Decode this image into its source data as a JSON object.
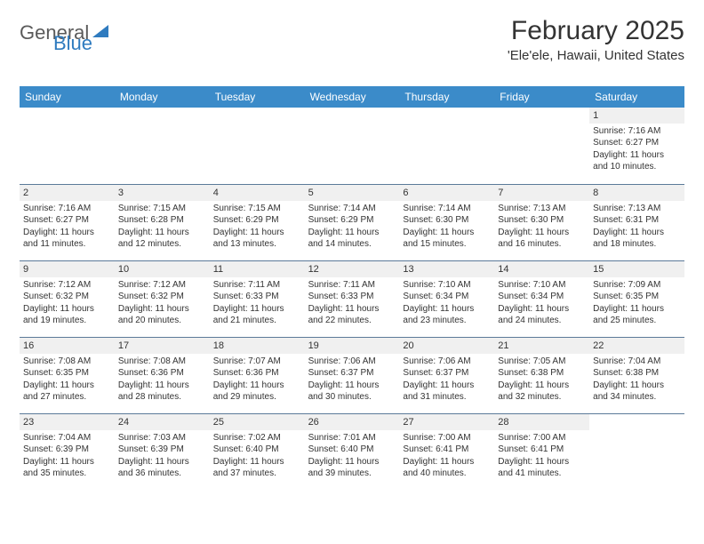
{
  "logo": {
    "text1": "General",
    "text2": "Blue"
  },
  "title": "February 2025",
  "location": "'Ele'ele, Hawaii, United States",
  "header_bg": "#3b8bc9",
  "header_fg": "#ffffff",
  "divider_color": "#5b7a99",
  "daynum_bg": "#f0f0f0",
  "text_color": "#333333",
  "weekdays": [
    "Sunday",
    "Monday",
    "Tuesday",
    "Wednesday",
    "Thursday",
    "Friday",
    "Saturday"
  ],
  "weeks": [
    [
      null,
      null,
      null,
      null,
      null,
      null,
      {
        "n": "1",
        "sr": "Sunrise: 7:16 AM",
        "ss": "Sunset: 6:27 PM",
        "dl": "Daylight: 11 hours and 10 minutes."
      }
    ],
    [
      {
        "n": "2",
        "sr": "Sunrise: 7:16 AM",
        "ss": "Sunset: 6:27 PM",
        "dl": "Daylight: 11 hours and 11 minutes."
      },
      {
        "n": "3",
        "sr": "Sunrise: 7:15 AM",
        "ss": "Sunset: 6:28 PM",
        "dl": "Daylight: 11 hours and 12 minutes."
      },
      {
        "n": "4",
        "sr": "Sunrise: 7:15 AM",
        "ss": "Sunset: 6:29 PM",
        "dl": "Daylight: 11 hours and 13 minutes."
      },
      {
        "n": "5",
        "sr": "Sunrise: 7:14 AM",
        "ss": "Sunset: 6:29 PM",
        "dl": "Daylight: 11 hours and 14 minutes."
      },
      {
        "n": "6",
        "sr": "Sunrise: 7:14 AM",
        "ss": "Sunset: 6:30 PM",
        "dl": "Daylight: 11 hours and 15 minutes."
      },
      {
        "n": "7",
        "sr": "Sunrise: 7:13 AM",
        "ss": "Sunset: 6:30 PM",
        "dl": "Daylight: 11 hours and 16 minutes."
      },
      {
        "n": "8",
        "sr": "Sunrise: 7:13 AM",
        "ss": "Sunset: 6:31 PM",
        "dl": "Daylight: 11 hours and 18 minutes."
      }
    ],
    [
      {
        "n": "9",
        "sr": "Sunrise: 7:12 AM",
        "ss": "Sunset: 6:32 PM",
        "dl": "Daylight: 11 hours and 19 minutes."
      },
      {
        "n": "10",
        "sr": "Sunrise: 7:12 AM",
        "ss": "Sunset: 6:32 PM",
        "dl": "Daylight: 11 hours and 20 minutes."
      },
      {
        "n": "11",
        "sr": "Sunrise: 7:11 AM",
        "ss": "Sunset: 6:33 PM",
        "dl": "Daylight: 11 hours and 21 minutes."
      },
      {
        "n": "12",
        "sr": "Sunrise: 7:11 AM",
        "ss": "Sunset: 6:33 PM",
        "dl": "Daylight: 11 hours and 22 minutes."
      },
      {
        "n": "13",
        "sr": "Sunrise: 7:10 AM",
        "ss": "Sunset: 6:34 PM",
        "dl": "Daylight: 11 hours and 23 minutes."
      },
      {
        "n": "14",
        "sr": "Sunrise: 7:10 AM",
        "ss": "Sunset: 6:34 PM",
        "dl": "Daylight: 11 hours and 24 minutes."
      },
      {
        "n": "15",
        "sr": "Sunrise: 7:09 AM",
        "ss": "Sunset: 6:35 PM",
        "dl": "Daylight: 11 hours and 25 minutes."
      }
    ],
    [
      {
        "n": "16",
        "sr": "Sunrise: 7:08 AM",
        "ss": "Sunset: 6:35 PM",
        "dl": "Daylight: 11 hours and 27 minutes."
      },
      {
        "n": "17",
        "sr": "Sunrise: 7:08 AM",
        "ss": "Sunset: 6:36 PM",
        "dl": "Daylight: 11 hours and 28 minutes."
      },
      {
        "n": "18",
        "sr": "Sunrise: 7:07 AM",
        "ss": "Sunset: 6:36 PM",
        "dl": "Daylight: 11 hours and 29 minutes."
      },
      {
        "n": "19",
        "sr": "Sunrise: 7:06 AM",
        "ss": "Sunset: 6:37 PM",
        "dl": "Daylight: 11 hours and 30 minutes."
      },
      {
        "n": "20",
        "sr": "Sunrise: 7:06 AM",
        "ss": "Sunset: 6:37 PM",
        "dl": "Daylight: 11 hours and 31 minutes."
      },
      {
        "n": "21",
        "sr": "Sunrise: 7:05 AM",
        "ss": "Sunset: 6:38 PM",
        "dl": "Daylight: 11 hours and 32 minutes."
      },
      {
        "n": "22",
        "sr": "Sunrise: 7:04 AM",
        "ss": "Sunset: 6:38 PM",
        "dl": "Daylight: 11 hours and 34 minutes."
      }
    ],
    [
      {
        "n": "23",
        "sr": "Sunrise: 7:04 AM",
        "ss": "Sunset: 6:39 PM",
        "dl": "Daylight: 11 hours and 35 minutes."
      },
      {
        "n": "24",
        "sr": "Sunrise: 7:03 AM",
        "ss": "Sunset: 6:39 PM",
        "dl": "Daylight: 11 hours and 36 minutes."
      },
      {
        "n": "25",
        "sr": "Sunrise: 7:02 AM",
        "ss": "Sunset: 6:40 PM",
        "dl": "Daylight: 11 hours and 37 minutes."
      },
      {
        "n": "26",
        "sr": "Sunrise: 7:01 AM",
        "ss": "Sunset: 6:40 PM",
        "dl": "Daylight: 11 hours and 39 minutes."
      },
      {
        "n": "27",
        "sr": "Sunrise: 7:00 AM",
        "ss": "Sunset: 6:41 PM",
        "dl": "Daylight: 11 hours and 40 minutes."
      },
      {
        "n": "28",
        "sr": "Sunrise: 7:00 AM",
        "ss": "Sunset: 6:41 PM",
        "dl": "Daylight: 11 hours and 41 minutes."
      },
      null
    ]
  ]
}
